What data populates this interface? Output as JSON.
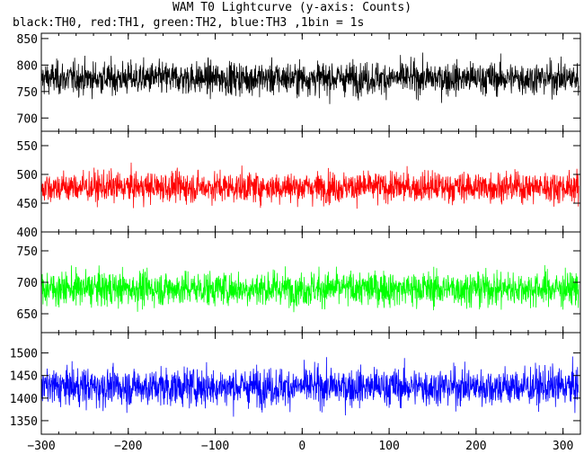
{
  "title": "WAM T0 Lightcurve (y-axis: Counts)",
  "subtitle": "black:TH0, red:TH1, green:TH2, blue:TH3 ,1bin = 1s",
  "chart_data": {
    "type": "line",
    "xlim": [
      -300,
      320
    ],
    "x_ticks": [
      -300,
      -200,
      -100,
      0,
      100,
      200,
      300
    ],
    "x": {
      "start": -300,
      "end": 318,
      "step": 1
    },
    "panels": [
      {
        "name": "TH0",
        "color": "#000000",
        "ylim": [
          675,
          860
        ],
        "y_ticks": [
          700,
          750,
          800,
          850
        ],
        "mean": 775,
        "spread": 28
      },
      {
        "name": "TH1",
        "color": "#ff0000",
        "ylim": [
          400,
          575
        ],
        "y_ticks": [
          400,
          450,
          500,
          550
        ],
        "mean": 478,
        "spread": 24
      },
      {
        "name": "TH2",
        "color": "#00ff00",
        "ylim": [
          620,
          780
        ],
        "y_ticks": [
          650,
          700,
          750
        ],
        "mean": 690,
        "spread": 25
      },
      {
        "name": "TH3",
        "color": "#0000ff",
        "ylim": [
          1320,
          1545
        ],
        "y_ticks": [
          1350,
          1400,
          1450,
          1500
        ],
        "mean": 1425,
        "spread": 38
      }
    ],
    "grid": false,
    "legend": "none"
  }
}
